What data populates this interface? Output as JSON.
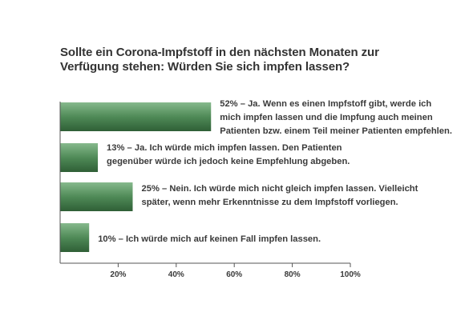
{
  "title_lines": [
    "Sollte ein Corona-Impfstoff in den nächsten Monaten zur",
    "Verfügung stehen: Würden Sie sich impfen lassen?"
  ],
  "colors": {
    "bar_dark": "#2f5f36",
    "bar_mid": "#4f8a57",
    "bar_light": "#86b98c",
    "axis": "#555555",
    "text": "#3a3a3a",
    "title": "#333333"
  },
  "chart_data": {
    "type": "bar",
    "orientation": "horizontal",
    "categories": [
      "52% – Ja. Wenn es einen Impfstoff gibt, werde ich mich impfen lassen und die Impfung auch meinen Patienten bzw. einem Teil meiner Patienten empfehlen.",
      "13% – Ja. Ich würde mich impfen lassen. Den Patienten gegenüber würde ich jedoch keine Empfehlung abgeben.",
      "25% – Nein. Ich würde mich nicht gleich impfen lassen. Vielleicht später, wenn mehr Erkenntnisse zu dem Impfstoff vorliegen.",
      "10% – Ich würde mich auf keinen Fall impfen lassen."
    ],
    "label_lines": [
      [
        "52% – Ja. Wenn es einen Impfstoff gibt, werde ich",
        "mich impfen lassen und die Impfung auch meinen",
        "Patienten bzw. einem Teil meiner Patienten empfehlen."
      ],
      [
        "13% – Ja. Ich würde mich impfen lassen. Den Patienten",
        "gegenüber würde ich jedoch keine Empfehlung abgeben."
      ],
      [
        "25% – Nein. Ich würde mich nicht gleich impfen lassen. Vielleicht",
        "später, wenn mehr Erkenntnisse zu dem Impfstoff vorliegen."
      ],
      [
        "10% – Ich würde mich auf keinen Fall impfen lassen."
      ]
    ],
    "values": [
      52,
      13,
      25,
      10
    ],
    "xlim": [
      0,
      100
    ],
    "xticks": [
      20,
      40,
      60,
      80,
      100
    ],
    "xtick_labels": [
      "20%",
      "40%",
      "60%",
      "80%",
      "100%"
    ],
    "grid": false,
    "legend": "none"
  }
}
